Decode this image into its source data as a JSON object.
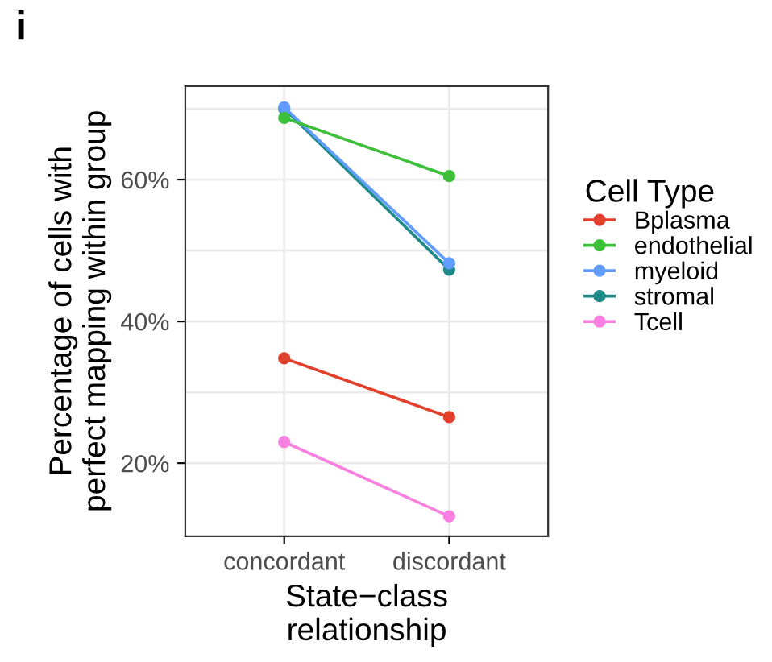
{
  "chart_data": {
    "type": "line",
    "title": "i",
    "xlabel": "State−class\nrelationship",
    "ylabel": "Percentage of cells with\nperfect mapping within group",
    "legend_title": "Cell Type",
    "legend": "right",
    "grid": true,
    "marker": "circle",
    "line_style": "solid",
    "categories": [
      "concordant",
      "discordant"
    ],
    "ylim": [
      9.7,
      73.2
    ],
    "yticks": [
      {
        "value": 20,
        "label": "20%"
      },
      {
        "value": 30,
        "label": null
      },
      {
        "value": 40,
        "label": "40%"
      },
      {
        "value": 50,
        "label": null
      },
      {
        "value": 60,
        "label": "60%"
      },
      {
        "value": 70,
        "label": null
      }
    ],
    "series": [
      {
        "name": "Bplasma",
        "color": "#e0402c",
        "values": [
          34.8,
          26.5
        ]
      },
      {
        "name": "endothelial",
        "color": "#3dbf3a",
        "values": [
          68.7,
          60.5
        ]
      },
      {
        "name": "myeloid",
        "color": "#619cff",
        "values": [
          70.2,
          48.2
        ]
      },
      {
        "name": "stromal",
        "color": "#1f8a87",
        "values": [
          70.0,
          47.3
        ]
      },
      {
        "name": "Tcell",
        "color": "#f780e0",
        "values": [
          23.0,
          12.5
        ]
      }
    ]
  }
}
